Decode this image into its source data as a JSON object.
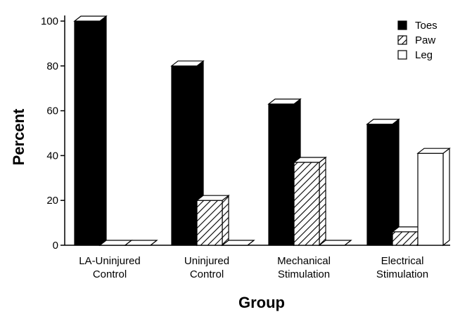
{
  "chart_data": {
    "type": "bar",
    "title": "",
    "xlabel": "Group",
    "ylabel": "Percent",
    "ylim": [
      0,
      100
    ],
    "yticks": [
      0,
      20,
      40,
      60,
      80,
      100
    ],
    "categories": [
      [
        "LA-Uninjured",
        "Control"
      ],
      [
        "Uninjured",
        "Control"
      ],
      [
        "Mechanical",
        "Stimulation"
      ],
      [
        "Electrical",
        "Stimulation"
      ]
    ],
    "series": [
      {
        "name": "Toes",
        "fill": "solid-black",
        "values": [
          100,
          80,
          63,
          54
        ]
      },
      {
        "name": "Paw",
        "fill": "hatched",
        "values": [
          0,
          20,
          37,
          6
        ]
      },
      {
        "name": "Leg",
        "fill": "white",
        "values": [
          0,
          0,
          0,
          41
        ]
      }
    ],
    "legend_position": "top-right",
    "grid": false,
    "style": "3d-bars"
  }
}
